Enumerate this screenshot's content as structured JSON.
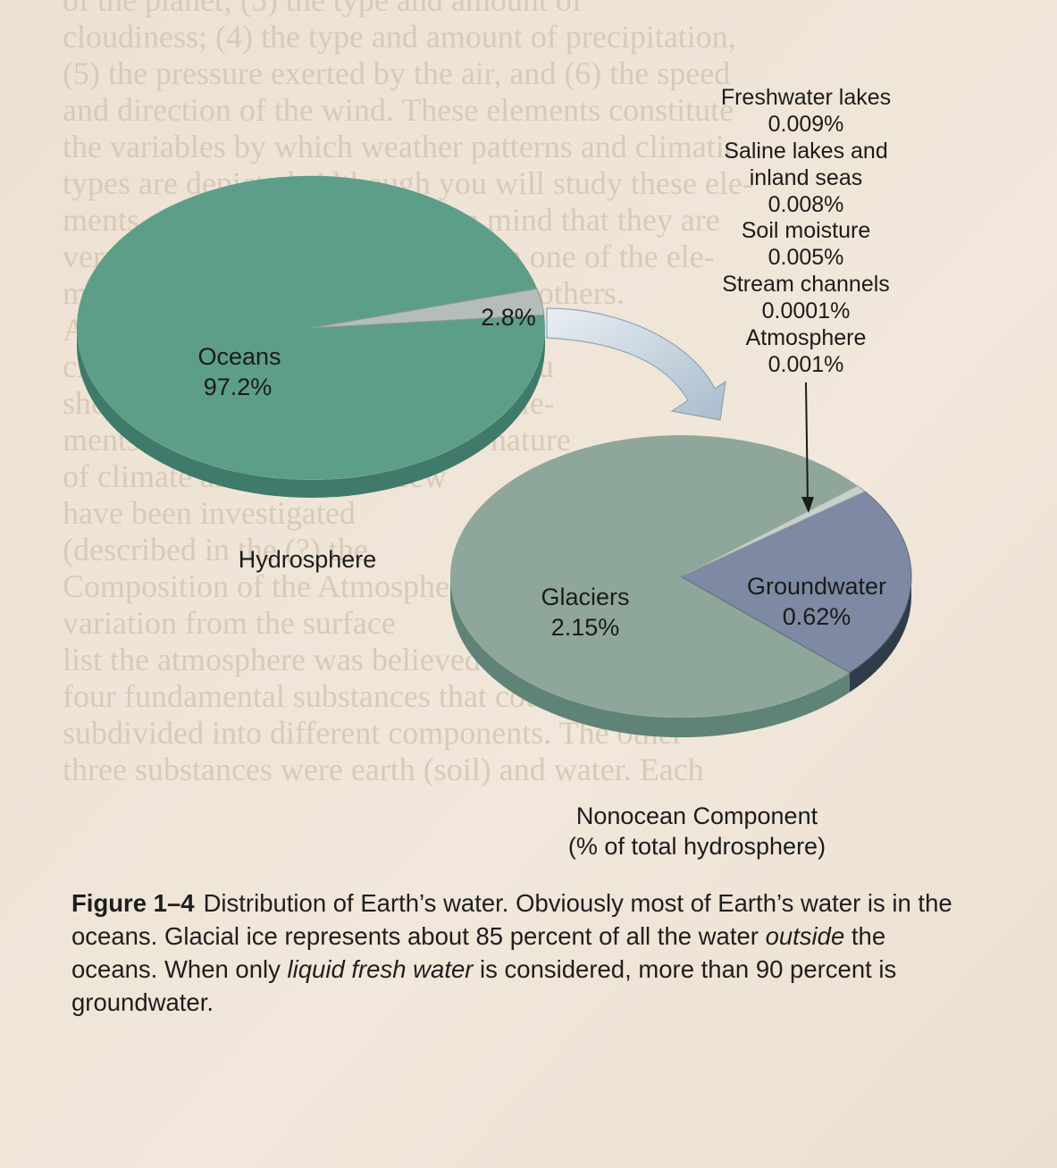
{
  "chart_data": [
    {
      "type": "pie",
      "name": "Hydrosphere",
      "title": "Hydrosphere",
      "slices": [
        {
          "label": "Oceans",
          "value": 97.2,
          "value_label": "97.2%",
          "color": "#5d9e89"
        },
        {
          "label": "",
          "value": 2.8,
          "value_label": "2.8%",
          "color": "#b4bdb8"
        }
      ]
    },
    {
      "type": "pie",
      "name": "Nonocean Component",
      "title": "Nonocean Component",
      "subtitle": "(% of total hydrosphere)",
      "slices": [
        {
          "label": "Glaciers",
          "value": 2.15,
          "value_label": "2.15%",
          "color": "#8fa79a"
        },
        {
          "label": "Groundwater",
          "value": 0.62,
          "value_label": "0.62%",
          "color": "#7e89a3"
        },
        {
          "label": "",
          "value": 0.0231,
          "value_label": "",
          "color": "#c6d0cc"
        }
      ],
      "annotations": [
        {
          "label": "Freshwater lakes",
          "value_label": "0.009%"
        },
        {
          "label": "Saline lakes and inland seas",
          "lines": [
            "Saline lakes and",
            "inland seas"
          ],
          "value_label": "0.008%"
        },
        {
          "label": "Soil moisture",
          "value_label": "0.005%"
        },
        {
          "label": "Stream channels",
          "value_label": "0.0001%"
        },
        {
          "label": "Atmosphere",
          "value_label": "0.001%"
        }
      ]
    }
  ],
  "caption": {
    "figure_number": "Figure 1–4",
    "text_1": "Distribution of Earth’s water. Obviously most of Earth’s water is in the oceans. Glacial ice represents about 85 percent of all the water ",
    "emphasis_1": "outside",
    "text_2": " the oceans. When only ",
    "emphasis_2": "liquid fresh water",
    "text_3": " is considered, more than 90 percent is groundwater."
  },
  "page_background": {
    "lines": [
      "of the planet; (5) the type and amount of",
      "cloudiness; (4) the type and amount of precipitation,",
      "(5) the pressure exerted by the air, and (6) the speed",
      "and direction of the wind. These elements constitute",
      "the variables by which weather patterns and climatic",
      "types are depicted. Although you will study these ele-",
      "ments separately at first, keep in mind that they are",
      "very much interrelated. A change in one of the ele-",
      "ments often produces changes in the others.",
      "As you study",
      "climate in detail, you will see that you",
      "should take into account all of the ele-",
      "ments together to understand the nature",
      "of climate and weather. A few",
      "have been investigated",
      "(described in the (?) the",
      "Composition of the Atmosphere",
      "variation from the surface",
      "list the atmosphere was believed to be one of",
      "four fundamental substances that could not be further",
      "subdivided into different components. The other",
      "three substances were earth (soil) and water. Each"
    ]
  }
}
